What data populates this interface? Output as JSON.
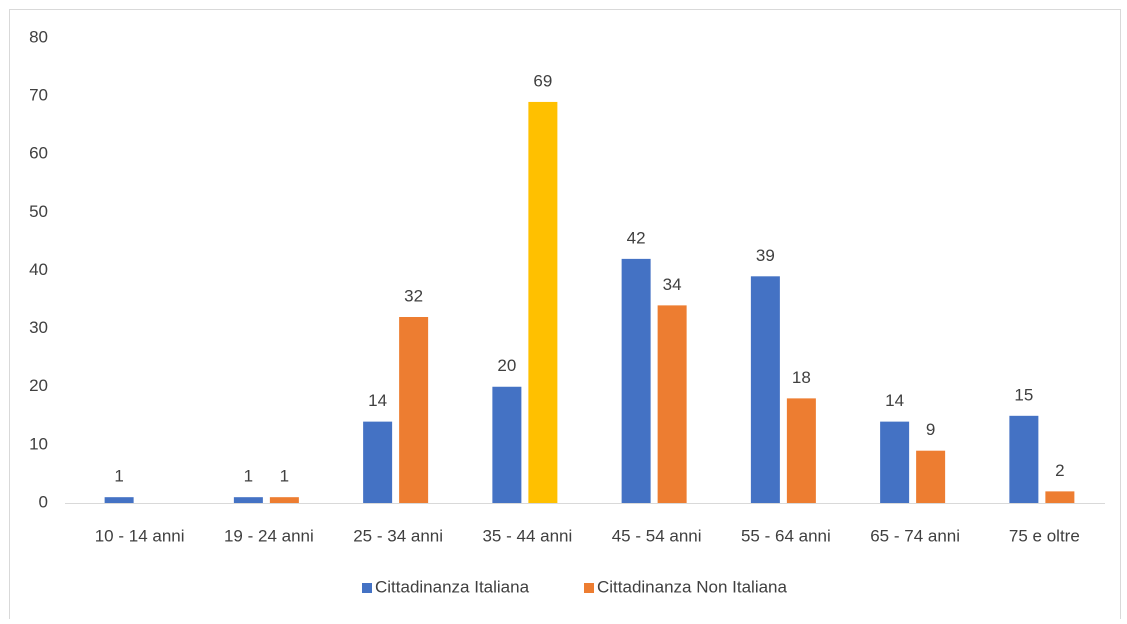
{
  "chart_data": {
    "type": "bar",
    "categories": [
      "10 - 14 anni",
      "19 - 24 anni",
      "25 - 34 anni",
      "35 - 44 anni",
      "45 - 54 anni",
      "55 - 64 anni",
      "65 - 74 anni",
      "75 e oltre"
    ],
    "series": [
      {
        "name": "Cittadinanza Italiana",
        "color": "#4472c4",
        "values": [
          1,
          1,
          14,
          20,
          42,
          39,
          14,
          15
        ]
      },
      {
        "name": "Cittadinanza Non Italiana",
        "color": "#ed7d31",
        "values": [
          null,
          1,
          32,
          69,
          34,
          18,
          9,
          2
        ],
        "colors": [
          "#ed7d31",
          "#ed7d31",
          "#ed7d31",
          "#ffc000",
          "#ed7d31",
          "#ed7d31",
          "#ed7d31",
          "#ed7d31"
        ]
      }
    ],
    "ylim": [
      0,
      80
    ],
    "yticks": [
      0,
      10,
      20,
      30,
      40,
      50,
      60,
      70,
      80
    ],
    "grid": false,
    "legend": "bottom"
  }
}
